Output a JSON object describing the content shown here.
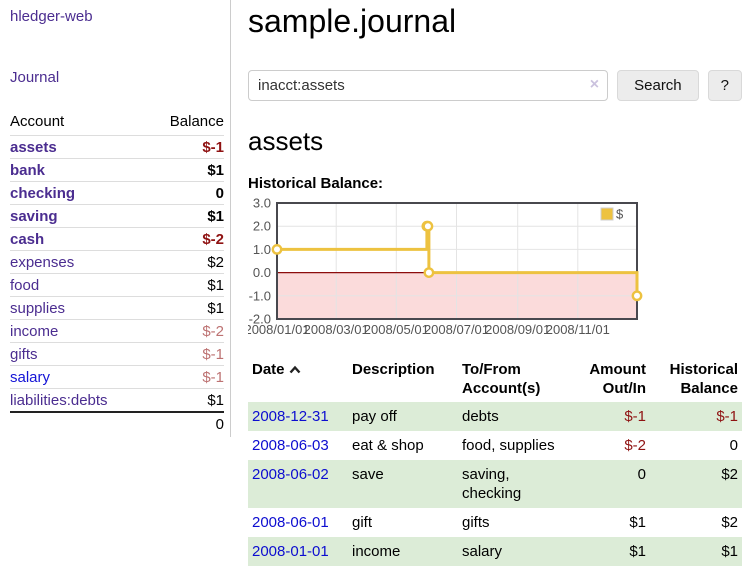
{
  "sidebar": {
    "app_title": "hledger-web",
    "journal_label": "Journal",
    "accounts": {
      "col_account": "Account",
      "col_balance": "Balance",
      "rows": [
        {
          "name": "assets",
          "depth": 0,
          "bold": true,
          "link": "purple",
          "balance": "$-1",
          "balance_style": "neg"
        },
        {
          "name": "bank",
          "depth": 1,
          "bold": true,
          "link": "purple",
          "balance": "$1",
          "balance_style": "pos"
        },
        {
          "name": "checking",
          "depth": 2,
          "bold": true,
          "link": "purple",
          "balance": "0",
          "balance_style": "pos"
        },
        {
          "name": "saving",
          "depth": 2,
          "bold": true,
          "link": "purple",
          "balance": "$1",
          "balance_style": "pos"
        },
        {
          "name": "cash",
          "depth": 1,
          "bold": true,
          "link": "purple",
          "balance": "$-2",
          "balance_style": "neg"
        },
        {
          "name": "expenses",
          "depth": 0,
          "bold": false,
          "link": "purple",
          "balance": "$2",
          "balance_style": "pos"
        },
        {
          "name": "food",
          "depth": 1,
          "bold": false,
          "link": "purple",
          "balance": "$1",
          "balance_style": "pos"
        },
        {
          "name": "supplies",
          "depth": 1,
          "bold": false,
          "link": "purple",
          "balance": "$1",
          "balance_style": "pos"
        },
        {
          "name": "income",
          "depth": 0,
          "bold": false,
          "link": "purple",
          "balance": "$-2",
          "balance_style": "dim"
        },
        {
          "name": "gifts",
          "depth": 1,
          "bold": false,
          "link": "purple",
          "balance": "$-1",
          "balance_style": "dim"
        },
        {
          "name": "salary",
          "depth": 1,
          "bold": false,
          "link": "blue",
          "balance": "$-1",
          "balance_style": "dim"
        },
        {
          "name": "liabilities:debts",
          "depth": 0,
          "bold": false,
          "link": "purple",
          "balance": "$1",
          "balance_style": "pos"
        }
      ],
      "total": "0"
    }
  },
  "main": {
    "title": "sample.journal",
    "search": {
      "query": "inacct:assets",
      "clear_icon": "×",
      "button_label": "Search",
      "help_label": "?"
    },
    "account_heading": "assets",
    "chart_label": "Historical Balance:"
  },
  "chart_data": {
    "type": "line",
    "step": true,
    "title": "Historical Balance",
    "series": [
      {
        "name": "$",
        "color": "#edc240",
        "points": [
          [
            "2008-01-01",
            1
          ],
          [
            "2008-06-01",
            2
          ],
          [
            "2008-06-02",
            2
          ],
          [
            "2008-06-03",
            0
          ],
          [
            "2008-12-31",
            -1
          ]
        ]
      }
    ],
    "x_ticks": [
      "2008/01/01",
      "2008/03/01",
      "2008/05/01",
      "2008/07/01",
      "2008/09/01",
      "2008/11/01"
    ],
    "y_ticks": [
      "3.0",
      "2.0",
      "1.0",
      "0.0",
      "-1.0",
      "-2.0"
    ],
    "ylim": [
      -2,
      3
    ],
    "xlim": [
      "2008-01-01",
      "2008-12-31"
    ],
    "legend_position": "top-right",
    "grid": true,
    "negative_region_color": "#fbdbdb",
    "zero_line_color": "#8c0d0d",
    "grid_color": "#e4e4e4",
    "border_color": "#48484e"
  },
  "register": {
    "sort_icon": "chevron-up-icon",
    "columns": [
      {
        "lines": [
          "Date",
          ""
        ],
        "align": "left",
        "sortable": true
      },
      {
        "lines": [
          "Description",
          ""
        ],
        "align": "left",
        "sortable": false
      },
      {
        "lines": [
          "To/From",
          "Account(s)"
        ],
        "align": "left",
        "sortable": false
      },
      {
        "lines": [
          "Amount",
          "Out/In"
        ],
        "align": "right",
        "sortable": false
      },
      {
        "lines": [
          "Historical",
          "Balance"
        ],
        "align": "right",
        "sortable": false
      }
    ],
    "rows": [
      {
        "date": "2008-12-31",
        "description": "pay off",
        "accounts": "debts",
        "amount": "$-1",
        "amount_neg": true,
        "balance": "$-1",
        "balance_neg": true
      },
      {
        "date": "2008-06-03",
        "description": "eat & shop",
        "accounts": "food, supplies",
        "amount": "$-2",
        "amount_neg": true,
        "balance": "0",
        "balance_neg": false
      },
      {
        "date": "2008-06-02",
        "description": "save",
        "accounts": "saving, checking",
        "amount": "0",
        "amount_neg": false,
        "balance": "$2",
        "balance_neg": false
      },
      {
        "date": "2008-06-01",
        "description": "gift",
        "accounts": "gifts",
        "amount": "$1",
        "amount_neg": false,
        "balance": "$2",
        "balance_neg": false
      },
      {
        "date": "2008-01-01",
        "description": "income",
        "accounts": "salary",
        "amount": "$1",
        "amount_neg": false,
        "balance": "$1",
        "balance_neg": false
      }
    ]
  },
  "colors": {
    "link_purple": "#4b2d90",
    "link_blue": "#1414d6",
    "date_link_blue": "#0d0dd0",
    "negative": "#8f1212",
    "negative_dim": "#bd7272",
    "row_stripe_green": "#dcecd7",
    "series_gold": "#edc240",
    "axis_text": "#545454"
  }
}
